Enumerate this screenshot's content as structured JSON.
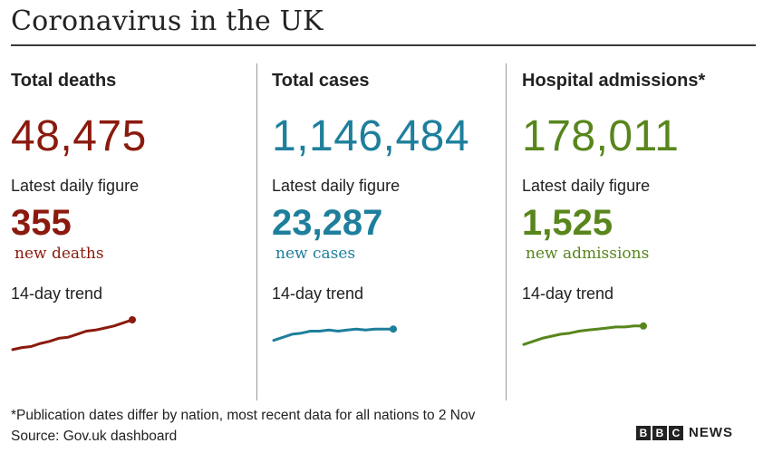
{
  "title": "Coronavirus in the UK",
  "colors": {
    "deaths": "#8b1a0e",
    "cases": "#1e7f9c",
    "admissions": "#58861c",
    "text": "#222222"
  },
  "panels": [
    {
      "heading": "Total deaths",
      "total": "48,475",
      "daily_label": "Latest daily figure",
      "daily_value": "355",
      "daily_unit": "new deaths",
      "trend_label": "14-day trend",
      "trend_icon": "sparkline-rising",
      "trend_values": [
        1,
        3,
        4,
        7,
        9,
        12,
        13,
        16,
        19,
        20,
        22,
        24,
        27,
        30
      ]
    },
    {
      "heading": "Total cases",
      "total": "1,146,484",
      "daily_label": "Latest daily figure",
      "daily_value": "23,287",
      "daily_unit": "new cases",
      "trend_label": "14-day trend",
      "trend_icon": "sparkline-flat",
      "trend_values": [
        10,
        13,
        16,
        17,
        19,
        19,
        20,
        19,
        20,
        21,
        20,
        21,
        21,
        21
      ]
    },
    {
      "heading": "Hospital admissions*",
      "total": "178,011",
      "daily_label": "Latest daily figure",
      "daily_value": "1,525",
      "daily_unit": "new admissions",
      "trend_label": "14-day trend",
      "trend_icon": "sparkline-rising",
      "trend_values": [
        6,
        9,
        12,
        14,
        16,
        17,
        19,
        20,
        21,
        22,
        23,
        23,
        24,
        24
      ]
    }
  ],
  "footer": {
    "note": "*Publication dates differ by nation, most recent data for all nations to 2 Nov",
    "source": "Source: Gov.uk dashboard"
  },
  "logo": {
    "letters": [
      "B",
      "B",
      "C"
    ],
    "text": "NEWS"
  }
}
